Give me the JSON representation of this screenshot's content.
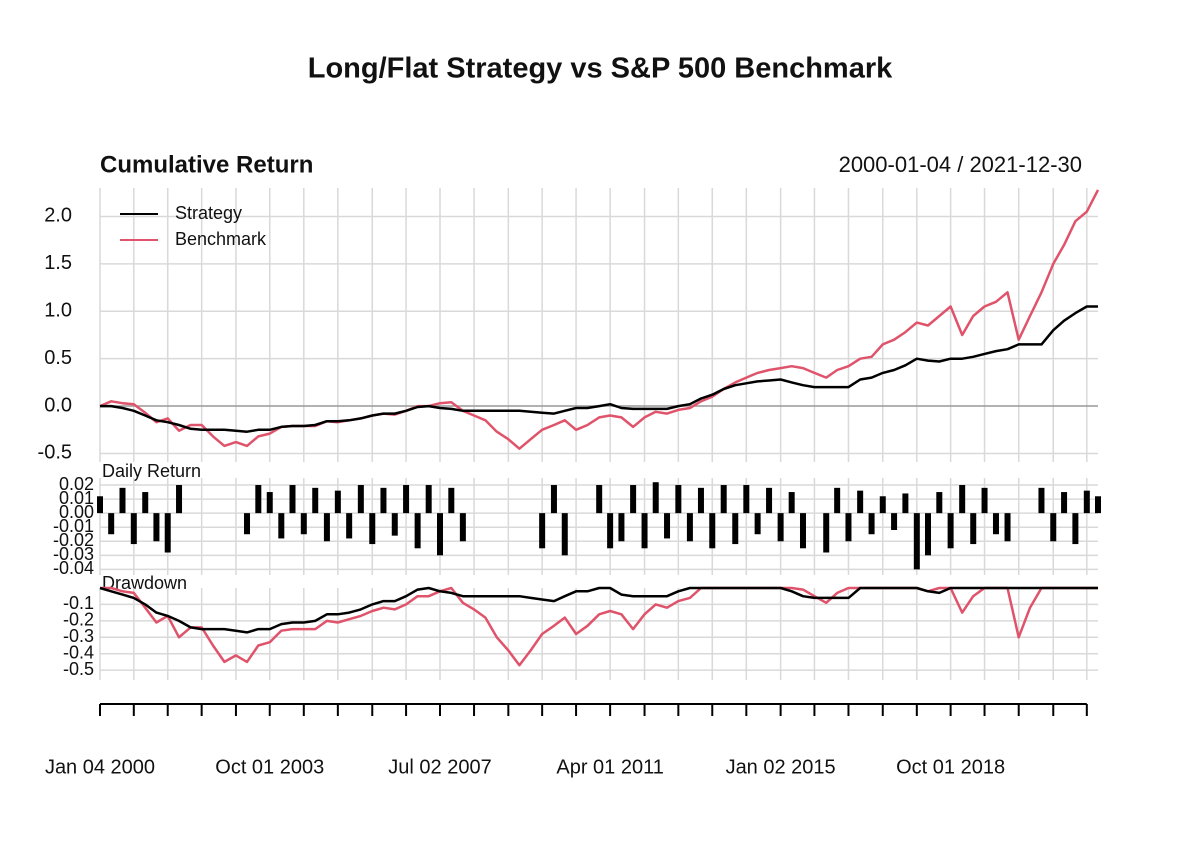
{
  "chart_data": {
    "title": "Long/Flat Strategy vs S&P 500 Benchmark",
    "date_range": "2000-01-04 / 2021-12-30",
    "xlim": [
      "2000-01-04",
      "2021-12-30"
    ],
    "xticks": [
      {
        "value": "2000-01-04",
        "label": "Jan 04 2000"
      },
      {
        "value": "2003-10-01",
        "label": "Oct 01 2003"
      },
      {
        "value": "2007-07-02",
        "label": "Jul 02 2007"
      },
      {
        "value": "2011-04-01",
        "label": "Apr 01 2011"
      },
      {
        "value": "2015-01-02",
        "label": "Jan 02 2015"
      },
      {
        "value": "2018-10-01",
        "label": "Oct 01 2018"
      }
    ],
    "x_minor_ticks": [
      "2000-10-02",
      "2001-07-02",
      "2002-04-01",
      "2003-01-02",
      "2004-07-01",
      "2005-04-01",
      "2006-01-03",
      "2006-10-02",
      "2008-04-01",
      "2009-01-02",
      "2009-10-01",
      "2010-07-01",
      "2012-01-03",
      "2012-10-01",
      "2013-07-01",
      "2014-04-01",
      "2015-10-01",
      "2016-07-01",
      "2017-04-03",
      "2018-01-02",
      "2019-07-01",
      "2020-04-01",
      "2021-01-04",
      "2021-10-01"
    ],
    "x": [
      "2000-01-04",
      "2000-04-03",
      "2000-07-03",
      "2000-10-02",
      "2001-01-02",
      "2001-04-02",
      "2001-07-02",
      "2001-10-01",
      "2002-01-02",
      "2002-04-01",
      "2002-07-01",
      "2002-10-01",
      "2003-01-02",
      "2003-04-01",
      "2003-07-01",
      "2003-10-01",
      "2004-01-02",
      "2004-04-01",
      "2004-07-01",
      "2004-10-01",
      "2005-01-03",
      "2005-04-01",
      "2005-07-01",
      "2005-10-03",
      "2006-01-03",
      "2006-04-03",
      "2006-07-03",
      "2006-10-02",
      "2007-01-03",
      "2007-04-02",
      "2007-07-02",
      "2007-10-01",
      "2008-01-02",
      "2008-04-01",
      "2008-07-01",
      "2008-10-01",
      "2009-01-02",
      "2009-04-01",
      "2009-07-01",
      "2009-10-01",
      "2010-01-04",
      "2010-04-01",
      "2010-07-01",
      "2010-10-01",
      "2011-01-03",
      "2011-04-01",
      "2011-07-01",
      "2011-10-03",
      "2012-01-03",
      "2012-04-02",
      "2012-07-02",
      "2012-10-01",
      "2013-01-02",
      "2013-04-01",
      "2013-07-01",
      "2013-10-01",
      "2014-01-02",
      "2014-04-01",
      "2014-07-01",
      "2014-10-01",
      "2015-01-02",
      "2015-04-01",
      "2015-07-01",
      "2015-10-01",
      "2016-01-04",
      "2016-04-01",
      "2016-07-01",
      "2016-10-03",
      "2017-01-03",
      "2017-04-03",
      "2017-07-03",
      "2017-10-02",
      "2018-01-02",
      "2018-04-02",
      "2018-07-02",
      "2018-10-01",
      "2019-01-02",
      "2019-04-01",
      "2019-07-01",
      "2019-10-01",
      "2020-01-02",
      "2020-04-01",
      "2020-07-01",
      "2020-10-01",
      "2021-01-04",
      "2021-04-01",
      "2021-07-01",
      "2021-10-01",
      "2021-12-30"
    ],
    "panels": [
      {
        "type": "line",
        "title": "Cumulative Return",
        "ylim": [
          -0.59,
          2.3
        ],
        "yticks": [
          -0.5,
          {
            "value": 0,
            "label": "0.0"
          },
          0.5,
          {
            "value": 1,
            "label": "1.0"
          },
          1.5,
          {
            "value": 2,
            "label": "2.0"
          }
        ],
        "grid": true,
        "legend": "top-left",
        "series": [
          {
            "name": "Strategy",
            "color": "#000000",
            "values": [
              0,
              0,
              -0.02,
              -0.05,
              -0.1,
              -0.15,
              -0.17,
              -0.2,
              -0.24,
              -0.25,
              -0.25,
              -0.25,
              -0.26,
              -0.27,
              -0.25,
              -0.25,
              -0.22,
              -0.21,
              -0.21,
              -0.2,
              -0.16,
              -0.16,
              -0.15,
              -0.13,
              -0.1,
              -0.08,
              -0.08,
              -0.05,
              -0.01,
              0,
              -0.02,
              -0.03,
              -0.05,
              -0.05,
              -0.05,
              -0.05,
              -0.05,
              -0.05,
              -0.06,
              -0.07,
              -0.08,
              -0.05,
              -0.02,
              -0.02,
              0,
              0.02,
              -0.02,
              -0.03,
              -0.03,
              -0.03,
              -0.03,
              0,
              0.02,
              0.08,
              0.12,
              0.18,
              0.22,
              0.24,
              0.26,
              0.27,
              0.28,
              0.25,
              0.22,
              0.2,
              0.2,
              0.2,
              0.2,
              0.28,
              0.3,
              0.35,
              0.38,
              0.43,
              0.5,
              0.48,
              0.47,
              0.5,
              0.5,
              0.52,
              0.55,
              0.58,
              0.6,
              0.65,
              0.65,
              0.65,
              0.8,
              0.9,
              0.98,
              1.05,
              1.05
            ]
          },
          {
            "name": "Benchmark",
            "color": "#DF536B",
            "values": [
              0,
              0.05,
              0.03,
              0.02,
              -0.07,
              -0.17,
              -0.13,
              -0.26,
              -0.2,
              -0.2,
              -0.32,
              -0.42,
              -0.38,
              -0.42,
              -0.32,
              -0.29,
              -0.22,
              -0.21,
              -0.21,
              -0.21,
              -0.16,
              -0.17,
              -0.15,
              -0.13,
              -0.1,
              -0.08,
              -0.09,
              -0.05,
              0,
              0,
              0.03,
              0.04,
              -0.05,
              -0.1,
              -0.15,
              -0.27,
              -0.35,
              -0.45,
              -0.35,
              -0.25,
              -0.2,
              -0.15,
              -0.25,
              -0.2,
              -0.12,
              -0.1,
              -0.12,
              -0.22,
              -0.12,
              -0.06,
              -0.08,
              -0.04,
              -0.02,
              0.05,
              0.1,
              0.18,
              0.25,
              0.3,
              0.35,
              0.38,
              0.4,
              0.42,
              0.4,
              0.35,
              0.3,
              0.38,
              0.42,
              0.5,
              0.52,
              0.65,
              0.7,
              0.78,
              0.88,
              0.85,
              0.95,
              1.05,
              0.75,
              0.95,
              1.05,
              1.1,
              1.2,
              0.7,
              0.95,
              1.2,
              1.5,
              1.7,
              1.95,
              2.05,
              2.28
            ]
          }
        ]
      },
      {
        "type": "bar",
        "title": "Daily Return",
        "ylim": [
          -0.044,
          0.025
        ],
        "yticks": [
          0.02,
          0.01,
          {
            "value": 0,
            "label": "0.00"
          },
          -0.01,
          -0.02,
          -0.03,
          -0.04
        ],
        "grid": true,
        "series": [
          {
            "name": "Strategy",
            "color": "#000000",
            "values": [
              0.012,
              -0.015,
              0.018,
              -0.022,
              0.015,
              -0.02,
              -0.028,
              0.02,
              null,
              null,
              null,
              null,
              null,
              -0.015,
              0.02,
              0.015,
              -0.018,
              0.02,
              -0.015,
              0.018,
              -0.02,
              0.016,
              -0.018,
              0.02,
              -0.022,
              0.018,
              -0.016,
              0.02,
              -0.025,
              0.02,
              -0.03,
              0.018,
              -0.02,
              null,
              null,
              null,
              null,
              null,
              null,
              -0.025,
              0.02,
              -0.03,
              null,
              null,
              0.02,
              -0.025,
              -0.02,
              0.02,
              -0.025,
              0.022,
              -0.018,
              0.02,
              -0.02,
              0.018,
              -0.025,
              0.02,
              -0.022,
              0.02,
              -0.015,
              0.018,
              -0.02,
              0.015,
              -0.025,
              null,
              -0.028,
              0.018,
              -0.02,
              0.016,
              -0.015,
              0.012,
              -0.012,
              0.014,
              -0.04,
              -0.03,
              0.015,
              -0.025,
              0.02,
              -0.022,
              0.018,
              -0.015,
              -0.02,
              null,
              null,
              0.018,
              -0.02,
              0.015,
              -0.022,
              0.016,
              0.012
            ]
          }
        ]
      },
      {
        "type": "line",
        "title": "Drawdown",
        "ylim": [
          -0.56,
          0
        ],
        "yticks": [
          -0.1,
          -0.2,
          -0.3,
          -0.4,
          -0.5
        ],
        "grid": true,
        "series": [
          {
            "name": "Strategy",
            "color": "#000000",
            "values": [
              0,
              -0.02,
              -0.04,
              -0.06,
              -0.1,
              -0.15,
              -0.17,
              -0.2,
              -0.24,
              -0.25,
              -0.25,
              -0.25,
              -0.26,
              -0.27,
              -0.25,
              -0.25,
              -0.22,
              -0.21,
              -0.21,
              -0.2,
              -0.16,
              -0.16,
              -0.15,
              -0.13,
              -0.1,
              -0.08,
              -0.08,
              -0.05,
              -0.01,
              0,
              -0.02,
              -0.03,
              -0.05,
              -0.05,
              -0.05,
              -0.05,
              -0.05,
              -0.05,
              -0.06,
              -0.07,
              -0.08,
              -0.05,
              -0.02,
              -0.02,
              0,
              0,
              -0.04,
              -0.05,
              -0.05,
              -0.05,
              -0.05,
              -0.02,
              0,
              0,
              0,
              0,
              0,
              0,
              0,
              0,
              0,
              -0.02,
              -0.05,
              -0.06,
              -0.06,
              -0.06,
              -0.06,
              0,
              0,
              0,
              0,
              0,
              0,
              -0.02,
              -0.03,
              0,
              0,
              0,
              0,
              0,
              0,
              0,
              0,
              0,
              0,
              0,
              0,
              0,
              0
            ]
          },
          {
            "name": "Benchmark",
            "color": "#DF536B",
            "values": [
              0,
              0,
              -0.02,
              -0.03,
              -0.12,
              -0.21,
              -0.17,
              -0.3,
              -0.24,
              -0.24,
              -0.35,
              -0.45,
              -0.41,
              -0.45,
              -0.35,
              -0.33,
              -0.26,
              -0.25,
              -0.25,
              -0.25,
              -0.2,
              -0.21,
              -0.19,
              -0.17,
              -0.14,
              -0.12,
              -0.13,
              -0.1,
              -0.05,
              -0.05,
              -0.02,
              0,
              -0.09,
              -0.13,
              -0.18,
              -0.3,
              -0.38,
              -0.47,
              -0.38,
              -0.28,
              -0.23,
              -0.18,
              -0.28,
              -0.23,
              -0.16,
              -0.14,
              -0.16,
              -0.25,
              -0.16,
              -0.1,
              -0.12,
              -0.08,
              -0.06,
              0,
              0,
              0,
              0,
              0,
              0,
              0,
              0,
              0,
              -0.01,
              -0.05,
              -0.09,
              -0.03,
              0,
              0,
              0,
              0,
              0,
              0,
              0,
              -0.02,
              0,
              0,
              -0.15,
              -0.05,
              0,
              0,
              0,
              -0.3,
              -0.12,
              0,
              0,
              0,
              0,
              0,
              0
            ]
          }
        ]
      }
    ]
  }
}
